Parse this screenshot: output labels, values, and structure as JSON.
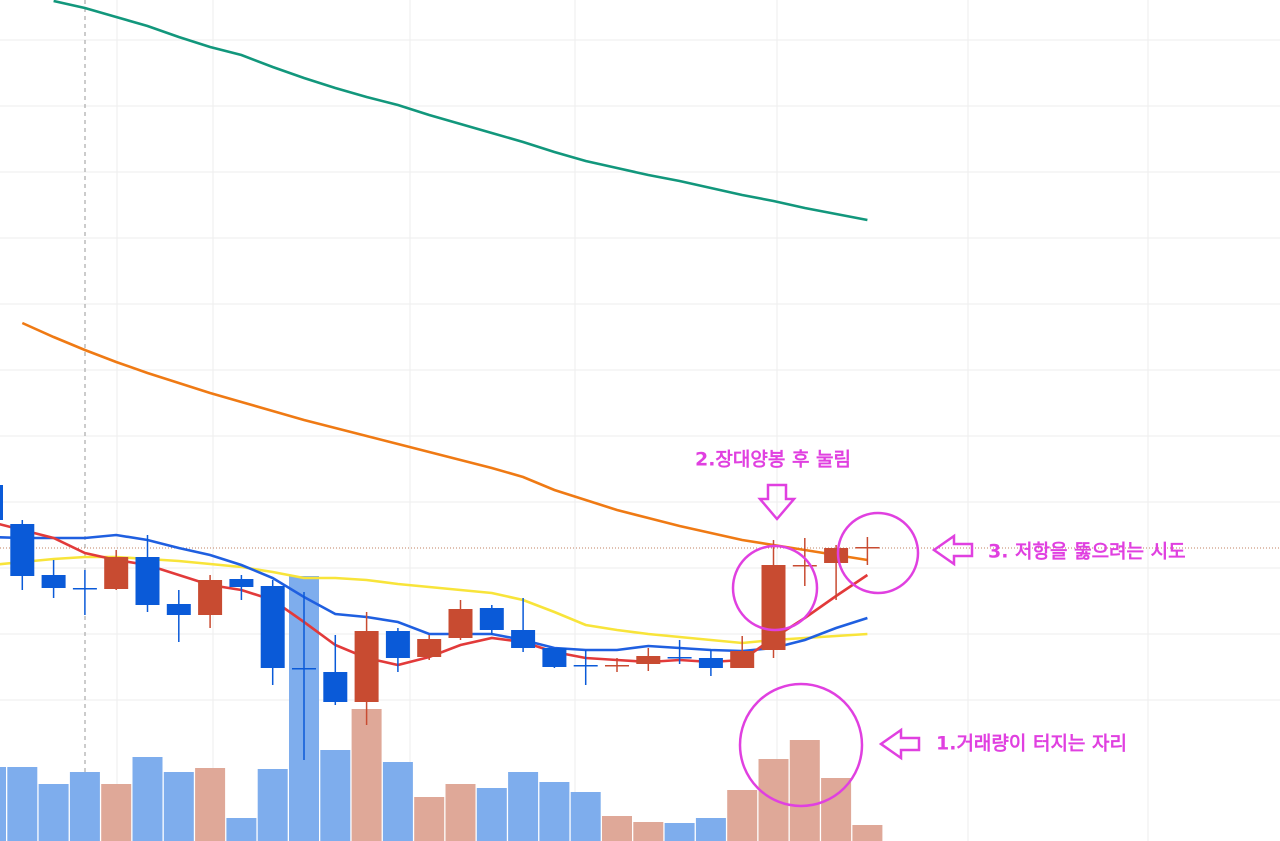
{
  "chart_data": {
    "type": "candlestick",
    "ylim": [
      0,
      841
    ],
    "open": [
      356,
      317,
      266,
      253,
      252,
      284,
      237,
      226,
      262,
      255,
      173,
      169,
      139,
      210,
      184,
      203,
      233,
      211,
      193,
      176,
      175,
      177,
      184,
      183,
      173,
      191,
      275,
      278,
      293
    ],
    "high": [
      361,
      321,
      281,
      271,
      291,
      306,
      251,
      266,
      266,
      261,
      249,
      206,
      229,
      213,
      206,
      241,
      236,
      243,
      193,
      191,
      183,
      193,
      201,
      191,
      205,
      301,
      303,
      296,
      304
    ],
    "low": [
      316,
      251,
      243,
      226,
      251,
      229,
      199,
      213,
      241,
      156,
      81,
      136,
      116,
      169,
      181,
      201,
      206,
      189,
      173,
      156,
      169,
      170,
      177,
      165,
      173,
      183,
      255,
      241,
      276
    ],
    "close": [
      321,
      265,
      253,
      252,
      284,
      236,
      226,
      261,
      254,
      173,
      172,
      139,
      210,
      183,
      202,
      232,
      211,
      193,
      174,
      175,
      176,
      185,
      183,
      173,
      190,
      276,
      276,
      293,
      294
    ],
    "volume": [
      74,
      74,
      57,
      69,
      57,
      84,
      69,
      73,
      23,
      72,
      265,
      91,
      132,
      79,
      44,
      57,
      53,
      69,
      59,
      49,
      25,
      19,
      18,
      23,
      51,
      82,
      101,
      63,
      16
    ],
    "up_color": "#c84b31",
    "down_color": "#0a5ad8",
    "up_volume_color": "#dfa898",
    "down_volume_color": "#7eaded",
    "moving_averages": [
      {
        "color": "#12977c",
        "values": [
          null,
          null,
          840,
          833,
          824,
          815,
          804,
          794,
          786,
          774,
          763,
          753,
          744,
          736,
          726,
          717,
          708,
          699,
          689,
          680,
          673,
          666,
          660,
          653,
          646,
          640,
          633,
          627,
          621
        ]
      },
      {
        "color": "#ef7a14",
        "values": [
          null,
          518,
          504,
          491,
          479,
          468,
          458,
          448,
          439,
          430,
          421,
          413,
          405,
          397,
          389,
          381,
          373,
          364,
          351,
          341,
          331,
          323,
          315,
          308,
          301,
          296,
          291,
          286,
          281
        ]
      },
      {
        "color": "#f8e43a",
        "values": [
          276,
          279,
          282,
          284,
          284,
          282,
          280,
          277,
          274,
          269,
          263,
          263,
          261,
          257,
          254,
          251,
          248,
          241,
          229,
          216,
          211,
          207,
          204,
          201,
          198,
          201,
          203,
          205,
          207
        ]
      },
      {
        "color": "#1f5fe0",
        "values": [
          304,
          303,
          303,
          303,
          306,
          301,
          293,
          286,
          276,
          263,
          244,
          227,
          224,
          219,
          207,
          207,
          207,
          201,
          193,
          191,
          191,
          195,
          193,
          191,
          190,
          193,
          201,
          213,
          223
        ]
      },
      {
        "color": "#e23a3a",
        "values": [
          319,
          311,
          303,
          288,
          281,
          276,
          266,
          256,
          251,
          241,
          219,
          196,
          183,
          176,
          184,
          196,
          203,
          199,
          189,
          183,
          181,
          179,
          181,
          179,
          181,
          203,
          223,
          245,
          266
        ]
      }
    ],
    "annotations": [
      {
        "text": "2.장대양봉 후 눌림"
      },
      {
        "text": "3. 저항을 뚫으려는 시도"
      },
      {
        "text": "1.거래량이 터지는 자리"
      }
    ],
    "annotation_color": "#e040e0"
  }
}
